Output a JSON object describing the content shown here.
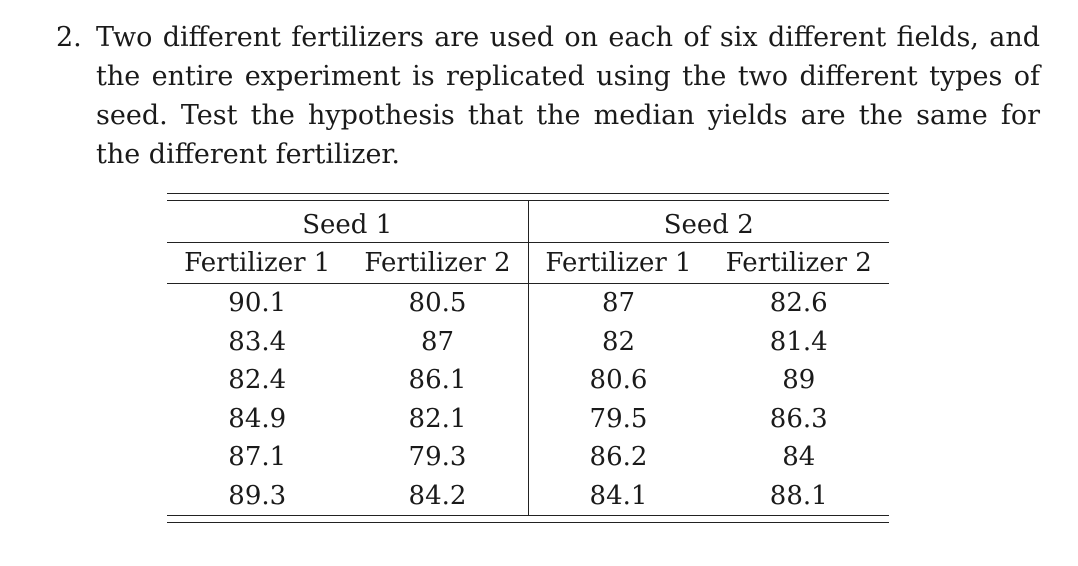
{
  "problem": {
    "number": "2.",
    "text": "Two different fertilizers are used on each of six different fields, and the entire experiment is replicated using the two different types of seed. Test the hypothesis that the median yields are the same for the different fertilizer."
  },
  "table": {
    "seed_headers": [
      "Seed 1",
      "Seed 2"
    ],
    "fertilizer_headers": [
      "Fertilizer 1",
      "Fertilizer 2",
      "Fertilizer 1",
      "Fertilizer 2"
    ],
    "rows": [
      [
        "90.1",
        "80.5",
        "87",
        "82.6"
      ],
      [
        "83.4",
        "87",
        "82",
        "81.4"
      ],
      [
        "82.4",
        "86.1",
        "80.6",
        "89"
      ],
      [
        "84.9",
        "82.1",
        "79.5",
        "86.3"
      ],
      [
        "87.1",
        "79.3",
        "86.2",
        "84"
      ],
      [
        "89.3",
        "84.2",
        "84.1",
        "88.1"
      ]
    ]
  }
}
